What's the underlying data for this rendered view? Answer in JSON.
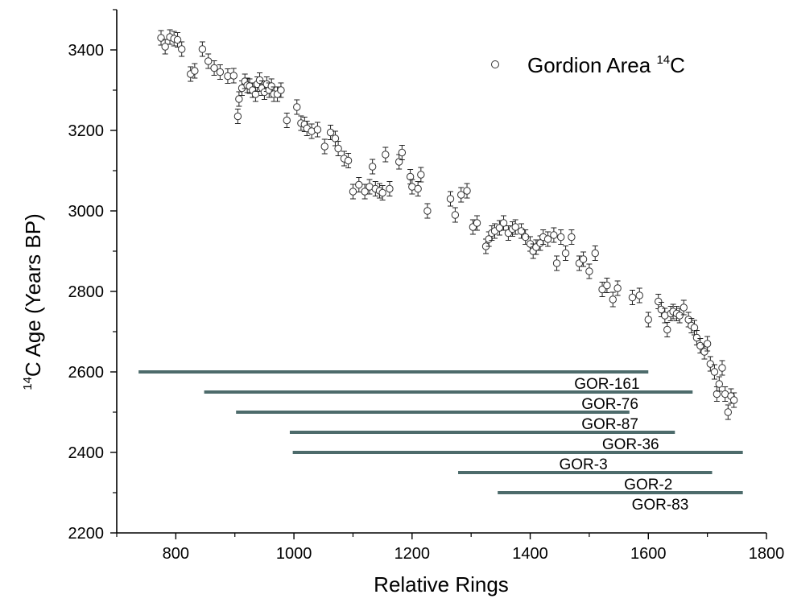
{
  "chart_data": {
    "type": "scatter",
    "title": "",
    "xlabel": "Relative Rings",
    "ylabel_prefix": "14",
    "ylabel_main": "C Age (Years BP)",
    "xlim": [
      700,
      1800
    ],
    "ylim": [
      2200,
      3500
    ],
    "xticks": [
      800,
      1000,
      1200,
      1400,
      1600,
      1800
    ],
    "yticks": [
      2200,
      2400,
      2600,
      2800,
      3000,
      3200,
      3400
    ],
    "grid": false,
    "legend": {
      "placement": "top-right",
      "label_main": "Gordion Area ",
      "label_sup": "14",
      "label_end": "C"
    },
    "series": [
      {
        "name": "Gordion Area 14C",
        "marker": "open-circle",
        "errorbar": 18,
        "points": [
          [
            775,
            3430
          ],
          [
            782,
            3408
          ],
          [
            790,
            3432
          ],
          [
            797,
            3428
          ],
          [
            803,
            3425
          ],
          [
            810,
            3402
          ],
          [
            825,
            3340
          ],
          [
            832,
            3348
          ],
          [
            845,
            3402
          ],
          [
            855,
            3372
          ],
          [
            865,
            3355
          ],
          [
            875,
            3345
          ],
          [
            888,
            3335
          ],
          [
            898,
            3336
          ],
          [
            905,
            3235
          ],
          [
            907,
            3278
          ],
          [
            912,
            3305
          ],
          [
            917,
            3322
          ],
          [
            921,
            3312
          ],
          [
            925,
            3310
          ],
          [
            930,
            3300
          ],
          [
            935,
            3290
          ],
          [
            938,
            3315
          ],
          [
            942,
            3325
          ],
          [
            946,
            3305
          ],
          [
            950,
            3295
          ],
          [
            954,
            3315
          ],
          [
            958,
            3300
          ],
          [
            962,
            3310
          ],
          [
            966,
            3290
          ],
          [
            972,
            3290
          ],
          [
            978,
            3300
          ],
          [
            988,
            3225
          ],
          [
            1005,
            3258
          ],
          [
            1012,
            3218
          ],
          [
            1018,
            3215
          ],
          [
            1022,
            3205
          ],
          [
            1030,
            3198
          ],
          [
            1040,
            3202
          ],
          [
            1052,
            3160
          ],
          [
            1062,
            3195
          ],
          [
            1070,
            3180
          ],
          [
            1075,
            3155
          ],
          [
            1085,
            3130
          ],
          [
            1092,
            3125
          ],
          [
            1100,
            3048
          ],
          [
            1110,
            3065
          ],
          [
            1120,
            3048
          ],
          [
            1128,
            3060
          ],
          [
            1133,
            3110
          ],
          [
            1138,
            3055
          ],
          [
            1145,
            3050
          ],
          [
            1150,
            3045
          ],
          [
            1155,
            3140
          ],
          [
            1162,
            3055
          ],
          [
            1178,
            3122
          ],
          [
            1183,
            3145
          ],
          [
            1197,
            3085
          ],
          [
            1200,
            3060
          ],
          [
            1210,
            3055
          ],
          [
            1215,
            3090
          ],
          [
            1226,
            3000
          ],
          [
            1265,
            3030
          ],
          [
            1273,
            2990
          ],
          [
            1283,
            3040
          ],
          [
            1293,
            3050
          ],
          [
            1303,
            2960
          ],
          [
            1310,
            2970
          ],
          [
            1325,
            2912
          ],
          [
            1330,
            2930
          ],
          [
            1335,
            2945
          ],
          [
            1340,
            2950
          ],
          [
            1348,
            2958
          ],
          [
            1355,
            2970
          ],
          [
            1363,
            2945
          ],
          [
            1370,
            2955
          ],
          [
            1375,
            2960
          ],
          [
            1385,
            2950
          ],
          [
            1392,
            2935
          ],
          [
            1400,
            2918
          ],
          [
            1405,
            2900
          ],
          [
            1410,
            2910
          ],
          [
            1417,
            2920
          ],
          [
            1422,
            2935
          ],
          [
            1430,
            2930
          ],
          [
            1440,
            2940
          ],
          [
            1445,
            2870
          ],
          [
            1452,
            2935
          ],
          [
            1460,
            2895
          ],
          [
            1470,
            2935
          ],
          [
            1483,
            2870
          ],
          [
            1490,
            2880
          ],
          [
            1500,
            2850
          ],
          [
            1510,
            2895
          ],
          [
            1522,
            2805
          ],
          [
            1530,
            2815
          ],
          [
            1540,
            2780
          ],
          [
            1548,
            2808
          ],
          [
            1573,
            2785
          ],
          [
            1585,
            2790
          ],
          [
            1600,
            2730
          ],
          [
            1617,
            2775
          ],
          [
            1622,
            2755
          ],
          [
            1628,
            2740
          ],
          [
            1632,
            2705
          ],
          [
            1638,
            2745
          ],
          [
            1642,
            2750
          ],
          [
            1648,
            2745
          ],
          [
            1653,
            2740
          ],
          [
            1660,
            2760
          ],
          [
            1668,
            2730
          ],
          [
            1673,
            2715
          ],
          [
            1678,
            2710
          ],
          [
            1682,
            2685
          ],
          [
            1688,
            2665
          ],
          [
            1695,
            2650
          ],
          [
            1700,
            2670
          ],
          [
            1705,
            2620
          ],
          [
            1712,
            2600
          ],
          [
            1716,
            2545
          ],
          [
            1720,
            2570
          ],
          [
            1725,
            2610
          ],
          [
            1730,
            2545
          ],
          [
            1735,
            2500
          ],
          [
            1740,
            2540
          ],
          [
            1745,
            2530
          ]
        ]
      }
    ],
    "ranges": {
      "color": "#4d6b6b",
      "items": [
        {
          "label": "",
          "x0": 737,
          "x1": 1600,
          "y": 2600
        },
        {
          "label": "GOR-161",
          "x0": 848,
          "x1": 1675,
          "y": 2550
        },
        {
          "label": "GOR-76",
          "x0": 902,
          "x1": 1568,
          "y": 2500
        },
        {
          "label": "GOR-87",
          "x0": 993,
          "x1": 1645,
          "y": 2450
        },
        {
          "label": "GOR-36",
          "x0": 998,
          "x1": 1760,
          "y": 2400
        },
        {
          "label": "GOR-3",
          "x0": 1278,
          "x1": 1708,
          "y": 2350
        },
        {
          "label": "GOR-2",
          "x0": 1345,
          "x1": 1760,
          "y": 2300
        },
        {
          "label": "GOR-83",
          "x0": null,
          "x1": null,
          "y": null
        }
      ],
      "label_y": [
        2572,
        2522,
        2472,
        2422,
        2372,
        2322,
        2272
      ],
      "label_x": [
        1530,
        1535,
        1535,
        1570,
        1490,
        1600,
        1620
      ]
    }
  }
}
